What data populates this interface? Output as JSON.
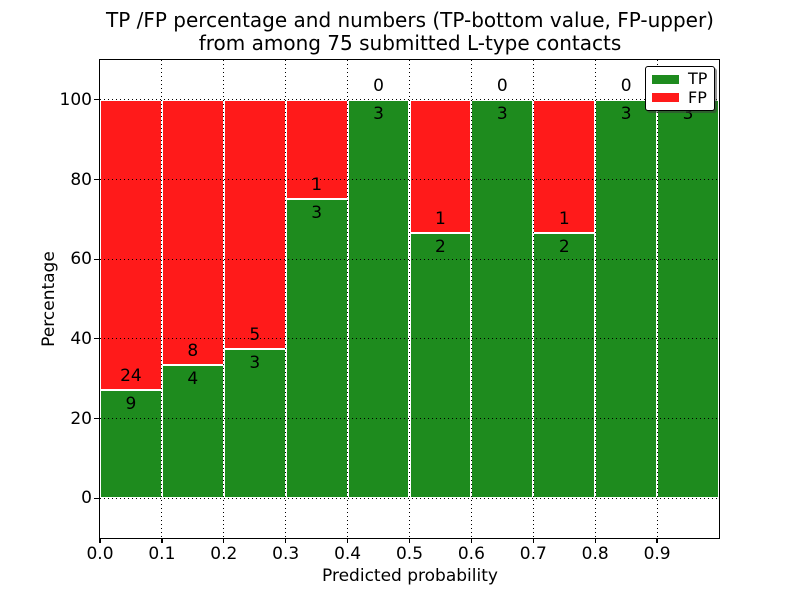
{
  "chart_data": {
    "type": "bar",
    "stacked": true,
    "title_line1": "TP /FP percentage and numbers (TP-bottom value, FP-upper)",
    "title_line2": "from among 75 submitted L-type contacts",
    "xlabel": "Predicted probability",
    "ylabel": "Percentage",
    "xlim": [
      0.0,
      1.0
    ],
    "ylim": [
      -10,
      110
    ],
    "grid": true,
    "grid_style": "dotted",
    "yticks": [
      0,
      20,
      40,
      60,
      80,
      100
    ],
    "xticks": [
      0.0,
      0.1,
      0.2,
      0.3,
      0.4,
      0.5,
      0.6,
      0.7,
      0.8,
      0.9
    ],
    "xtick_labels": [
      "0.0",
      "0.1",
      "0.2",
      "0.3",
      "0.4",
      "0.5",
      "0.6",
      "0.7",
      "0.8",
      "0.9"
    ],
    "series": [
      {
        "name": "TP",
        "color": "#1E8B1E"
      },
      {
        "name": "FP",
        "color": "#FF1A1A"
      }
    ],
    "bar_edge_color": "#ffffff",
    "bins": [
      {
        "x_start": 0.0,
        "x_end": 0.1,
        "tp": 9,
        "fp": 24,
        "tp_pct": 27.27,
        "fp_pct": 72.73
      },
      {
        "x_start": 0.1,
        "x_end": 0.2,
        "tp": 4,
        "fp": 8,
        "tp_pct": 33.33,
        "fp_pct": 66.67
      },
      {
        "x_start": 0.2,
        "x_end": 0.3,
        "tp": 3,
        "fp": 5,
        "tp_pct": 37.5,
        "fp_pct": 62.5
      },
      {
        "x_start": 0.3,
        "x_end": 0.4,
        "tp": 3,
        "fp": 1,
        "tp_pct": 75.0,
        "fp_pct": 25.0
      },
      {
        "x_start": 0.4,
        "x_end": 0.5,
        "tp": 3,
        "fp": 0,
        "tp_pct": 100.0,
        "fp_pct": 0.0
      },
      {
        "x_start": 0.5,
        "x_end": 0.6,
        "tp": 2,
        "fp": 1,
        "tp_pct": 66.67,
        "fp_pct": 33.33
      },
      {
        "x_start": 0.6,
        "x_end": 0.7,
        "tp": 3,
        "fp": 0,
        "tp_pct": 100.0,
        "fp_pct": 0.0
      },
      {
        "x_start": 0.7,
        "x_end": 0.8,
        "tp": 2,
        "fp": 1,
        "tp_pct": 66.67,
        "fp_pct": 33.33
      },
      {
        "x_start": 0.8,
        "x_end": 0.9,
        "tp": 3,
        "fp": 0,
        "tp_pct": 100.0,
        "fp_pct": 0.0
      },
      {
        "x_start": 0.9,
        "x_end": 1.0,
        "tp": 3,
        "fp": 0,
        "tp_pct": 100.0,
        "fp_pct": 0.0
      }
    ],
    "legend": {
      "position": "upper right",
      "entries": [
        {
          "label": "TP",
          "color": "#1E8B1E"
        },
        {
          "label": "FP",
          "color": "#FF1A1A"
        }
      ]
    }
  }
}
